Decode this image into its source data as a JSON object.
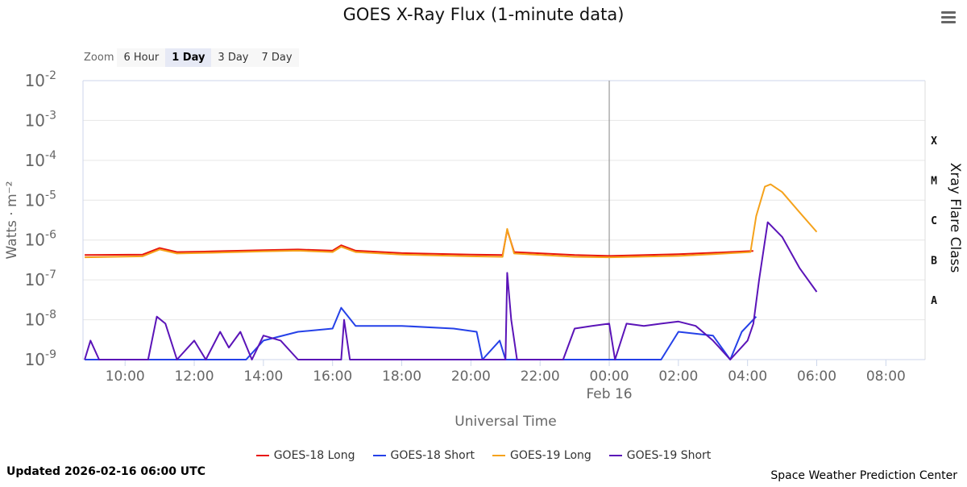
{
  "menu_icon": "hamburger-menu-icon",
  "zoom": {
    "label": "Zoom",
    "buttons": [
      "6 Hour",
      "1 Day",
      "3 Day",
      "7 Day"
    ],
    "selected": "1 Day"
  },
  "footer": {
    "updated": "Updated 2026-02-16 06:00 UTC",
    "source": "Space Weather Prediction Center"
  },
  "chart_data": {
    "type": "line",
    "title": "GOES X-Ray Flux (1-minute data)",
    "xlabel": "Universal Time",
    "ylabel": "Watts · m⁻²",
    "y2label": "Xray Flare Class",
    "yscale": "log",
    "ylim": [
      1e-09,
      0.01
    ],
    "xlim": [
      "2026-02-15T08:47",
      "2026-02-16T09:08"
    ],
    "grid": true,
    "legend": "bottom",
    "y_ticks": [
      {
        "base": "10",
        "exp": "-2"
      },
      {
        "base": "10",
        "exp": "-3"
      },
      {
        "base": "10",
        "exp": "-4"
      },
      {
        "base": "10",
        "exp": "-5"
      },
      {
        "base": "10",
        "exp": "-6"
      },
      {
        "base": "10",
        "exp": "-7"
      },
      {
        "base": "10",
        "exp": "-8"
      },
      {
        "base": "10",
        "exp": "-9"
      }
    ],
    "x_ticks": [
      {
        "t": "2026-02-15T10:00",
        "label": "10:00"
      },
      {
        "t": "2026-02-15T12:00",
        "label": "12:00"
      },
      {
        "t": "2026-02-15T14:00",
        "label": "14:00"
      },
      {
        "t": "2026-02-15T16:00",
        "label": "16:00"
      },
      {
        "t": "2026-02-15T18:00",
        "label": "18:00"
      },
      {
        "t": "2026-02-15T20:00",
        "label": "20:00"
      },
      {
        "t": "2026-02-15T22:00",
        "label": "22:00"
      },
      {
        "t": "2026-02-16T00:00",
        "label": "00:00"
      },
      {
        "t": "2026-02-16T02:00",
        "label": "02:00"
      },
      {
        "t": "2026-02-16T04:00",
        "label": "04:00"
      },
      {
        "t": "2026-02-16T06:00",
        "label": "06:00"
      },
      {
        "t": "2026-02-16T08:00",
        "label": "08:00"
      }
    ],
    "date_label": {
      "t": "2026-02-16T00:00",
      "label": "Feb 16"
    },
    "flare_classes": [
      {
        "label": "X",
        "value": 0.0001
      },
      {
        "label": "M",
        "value": 1e-05
      },
      {
        "label": "C",
        "value": 1e-06
      },
      {
        "label": "B",
        "value": 1e-07
      },
      {
        "label": "A",
        "value": 1e-08
      }
    ],
    "series": [
      {
        "name": "GOES-18 Long",
        "color": "#e8150c",
        "points": [
          [
            "2026-02-15T08:50",
            4.2e-07
          ],
          [
            "2026-02-15T10:30",
            4.3e-07
          ],
          [
            "2026-02-15T11:00",
            6.3e-07
          ],
          [
            "2026-02-15T11:30",
            5e-07
          ],
          [
            "2026-02-15T12:30",
            5.2e-07
          ],
          [
            "2026-02-15T14:00",
            5.6e-07
          ],
          [
            "2026-02-15T15:00",
            5.8e-07
          ],
          [
            "2026-02-15T16:00",
            5.4e-07
          ],
          [
            "2026-02-15T16:15",
            7.4e-07
          ],
          [
            "2026-02-15T16:40",
            5.4e-07
          ],
          [
            "2026-02-15T18:00",
            4.7e-07
          ],
          [
            "2026-02-15T20:00",
            4.3e-07
          ],
          [
            "2026-02-15T20:55",
            4.2e-07
          ],
          [
            "2026-02-15T21:03",
            1.8e-06
          ],
          [
            "2026-02-15T21:15",
            5e-07
          ],
          [
            "2026-02-15T23:00",
            4.2e-07
          ],
          [
            "2026-02-16T00:00",
            4e-07
          ],
          [
            "2026-02-16T02:00",
            4.4e-07
          ],
          [
            "2026-02-16T03:00",
            4.8e-07
          ],
          [
            "2026-02-16T04:10",
            5.3e-07
          ]
        ]
      },
      {
        "name": "GOES-18 Short",
        "color": "#2541e8",
        "points": [
          [
            "2026-02-15T08:50",
            1e-09
          ],
          [
            "2026-02-15T13:30",
            1e-09
          ],
          [
            "2026-02-15T14:00",
            3e-09
          ],
          [
            "2026-02-15T15:00",
            5e-09
          ],
          [
            "2026-02-15T16:00",
            6e-09
          ],
          [
            "2026-02-15T16:15",
            2e-08
          ],
          [
            "2026-02-15T16:40",
            7e-09
          ],
          [
            "2026-02-15T18:00",
            7e-09
          ],
          [
            "2026-02-15T19:30",
            6e-09
          ],
          [
            "2026-02-15T20:10",
            5e-09
          ],
          [
            "2026-02-15T20:20",
            1e-09
          ],
          [
            "2026-02-15T20:50",
            3e-09
          ],
          [
            "2026-02-15T21:00",
            1e-09
          ],
          [
            "2026-02-16T01:30",
            1e-09
          ],
          [
            "2026-02-16T02:00",
            5e-09
          ],
          [
            "2026-02-16T03:00",
            4e-09
          ],
          [
            "2026-02-16T03:30",
            1e-09
          ],
          [
            "2026-02-16T03:50",
            5e-09
          ],
          [
            "2026-02-16T04:15",
            1.2e-08
          ]
        ]
      },
      {
        "name": "GOES-19 Long",
        "color": "#f5a21b",
        "points": [
          [
            "2026-02-15T08:50",
            3.7e-07
          ],
          [
            "2026-02-15T10:30",
            3.9e-07
          ],
          [
            "2026-02-15T11:00",
            5.8e-07
          ],
          [
            "2026-02-15T11:30",
            4.6e-07
          ],
          [
            "2026-02-15T12:30",
            4.8e-07
          ],
          [
            "2026-02-15T14:00",
            5.2e-07
          ],
          [
            "2026-02-15T15:00",
            5.4e-07
          ],
          [
            "2026-02-15T16:00",
            5e-07
          ],
          [
            "2026-02-15T16:15",
            6.8e-07
          ],
          [
            "2026-02-15T16:40",
            5e-07
          ],
          [
            "2026-02-15T18:00",
            4.3e-07
          ],
          [
            "2026-02-15T20:00",
            3.9e-07
          ],
          [
            "2026-02-15T20:55",
            3.8e-07
          ],
          [
            "2026-02-15T21:03",
            1.9e-06
          ],
          [
            "2026-02-15T21:15",
            4.6e-07
          ],
          [
            "2026-02-15T23:00",
            3.8e-07
          ],
          [
            "2026-02-16T00:00",
            3.7e-07
          ],
          [
            "2026-02-16T02:00",
            4e-07
          ],
          [
            "2026-02-16T03:00",
            4.4e-07
          ],
          [
            "2026-02-16T04:05",
            5e-07
          ],
          [
            "2026-02-16T04:15",
            4e-06
          ],
          [
            "2026-02-16T04:30",
            2.2e-05
          ],
          [
            "2026-02-16T04:40",
            2.5e-05
          ],
          [
            "2026-02-16T05:00",
            1.6e-05
          ],
          [
            "2026-02-16T05:30",
            5e-06
          ],
          [
            "2026-02-16T06:00",
            1.6e-06
          ]
        ]
      },
      {
        "name": "GOES-19 Short",
        "color": "#5b14b8",
        "points": [
          [
            "2026-02-15T08:50",
            1e-09
          ],
          [
            "2026-02-15T09:00",
            3e-09
          ],
          [
            "2026-02-15T09:15",
            1e-09
          ],
          [
            "2026-02-15T10:00",
            1e-09
          ],
          [
            "2026-02-15T10:40",
            1e-09
          ],
          [
            "2026-02-15T10:55",
            1.2e-08
          ],
          [
            "2026-02-15T11:10",
            8e-09
          ],
          [
            "2026-02-15T11:30",
            1e-09
          ],
          [
            "2026-02-15T12:00",
            3e-09
          ],
          [
            "2026-02-15T12:20",
            1e-09
          ],
          [
            "2026-02-15T12:45",
            5e-09
          ],
          [
            "2026-02-15T13:00",
            2e-09
          ],
          [
            "2026-02-15T13:20",
            5e-09
          ],
          [
            "2026-02-15T13:40",
            1e-09
          ],
          [
            "2026-02-15T14:00",
            4e-09
          ],
          [
            "2026-02-15T14:30",
            3e-09
          ],
          [
            "2026-02-15T15:00",
            1e-09
          ],
          [
            "2026-02-15T16:15",
            1e-09
          ],
          [
            "2026-02-15T16:20",
            1e-08
          ],
          [
            "2026-02-15T16:30",
            1e-09
          ],
          [
            "2026-02-15T21:00",
            1e-09
          ],
          [
            "2026-02-15T21:03",
            1.5e-07
          ],
          [
            "2026-02-15T21:10",
            1e-08
          ],
          [
            "2026-02-15T21:20",
            1e-09
          ],
          [
            "2026-02-15T22:40",
            1e-09
          ],
          [
            "2026-02-15T23:00",
            6e-09
          ],
          [
            "2026-02-15T23:30",
            7e-09
          ],
          [
            "2026-02-16T00:00",
            8e-09
          ],
          [
            "2026-02-16T00:10",
            1e-09
          ],
          [
            "2026-02-16T00:30",
            8e-09
          ],
          [
            "2026-02-16T01:00",
            7e-09
          ],
          [
            "2026-02-16T01:30",
            8e-09
          ],
          [
            "2026-02-16T02:00",
            9e-09
          ],
          [
            "2026-02-16T02:30",
            7e-09
          ],
          [
            "2026-02-16T03:00",
            3e-09
          ],
          [
            "2026-02-16T03:30",
            1e-09
          ],
          [
            "2026-02-16T04:00",
            3e-09
          ],
          [
            "2026-02-16T04:10",
            8e-09
          ],
          [
            "2026-02-16T04:20",
            1e-07
          ],
          [
            "2026-02-16T04:35",
            2.8e-06
          ],
          [
            "2026-02-16T05:00",
            1.2e-06
          ],
          [
            "2026-02-16T05:30",
            2e-07
          ],
          [
            "2026-02-16T06:00",
            5e-08
          ]
        ]
      }
    ]
  }
}
